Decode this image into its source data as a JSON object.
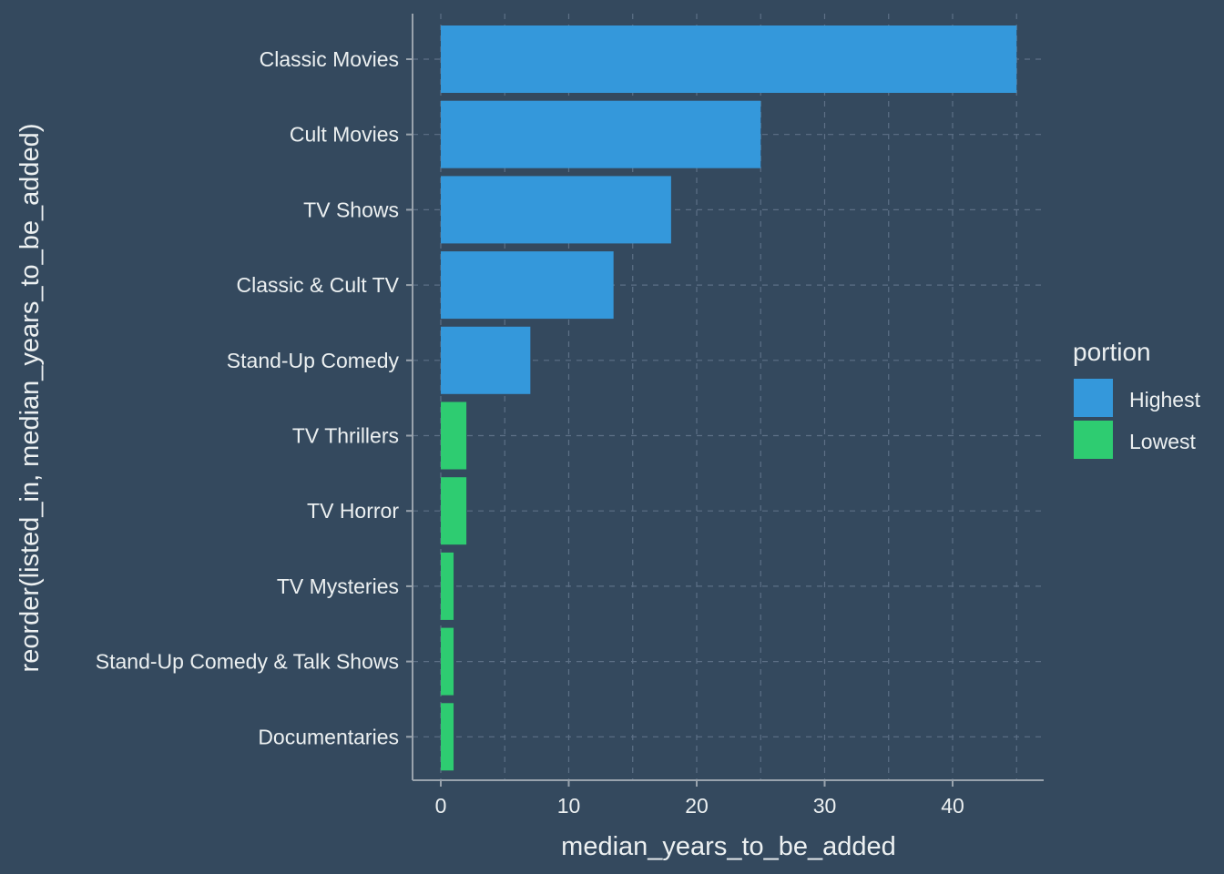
{
  "theme": {
    "background": "#34495e",
    "grid_color": "#5d7086",
    "axis_line_color": "#99a3ad",
    "text_color": "#ecf0f1"
  },
  "chart_data": {
    "type": "bar",
    "orientation": "horizontal",
    "categories": [
      "Classic Movies",
      "Cult Movies",
      "TV Shows",
      "Classic & Cult TV",
      "Stand-Up Comedy",
      "TV Thrillers",
      "TV Horror",
      "TV Mysteries",
      "Stand-Up Comedy & Talk Shows",
      "Documentaries"
    ],
    "values": [
      45,
      25,
      18,
      13.5,
      7,
      2,
      2,
      1,
      1,
      1
    ],
    "portion": [
      "Highest",
      "Highest",
      "Highest",
      "Highest",
      "Highest",
      "Lowest",
      "Lowest",
      "Lowest",
      "Lowest",
      "Lowest"
    ],
    "xlabel": "median_years_to_be_added",
    "ylabel": "reorder(listed_in, median_years_to_be_added)",
    "xlim": [
      -2.25,
      47.25
    ],
    "xticks": [
      0,
      10,
      20,
      30,
      40
    ],
    "grid": true,
    "grid_style": "dashed",
    "legend": {
      "title": "portion",
      "position": "right",
      "entries": [
        {
          "label": "Highest",
          "color": "#3498db"
        },
        {
          "label": "Lowest",
          "color": "#2ecc71"
        }
      ]
    }
  }
}
